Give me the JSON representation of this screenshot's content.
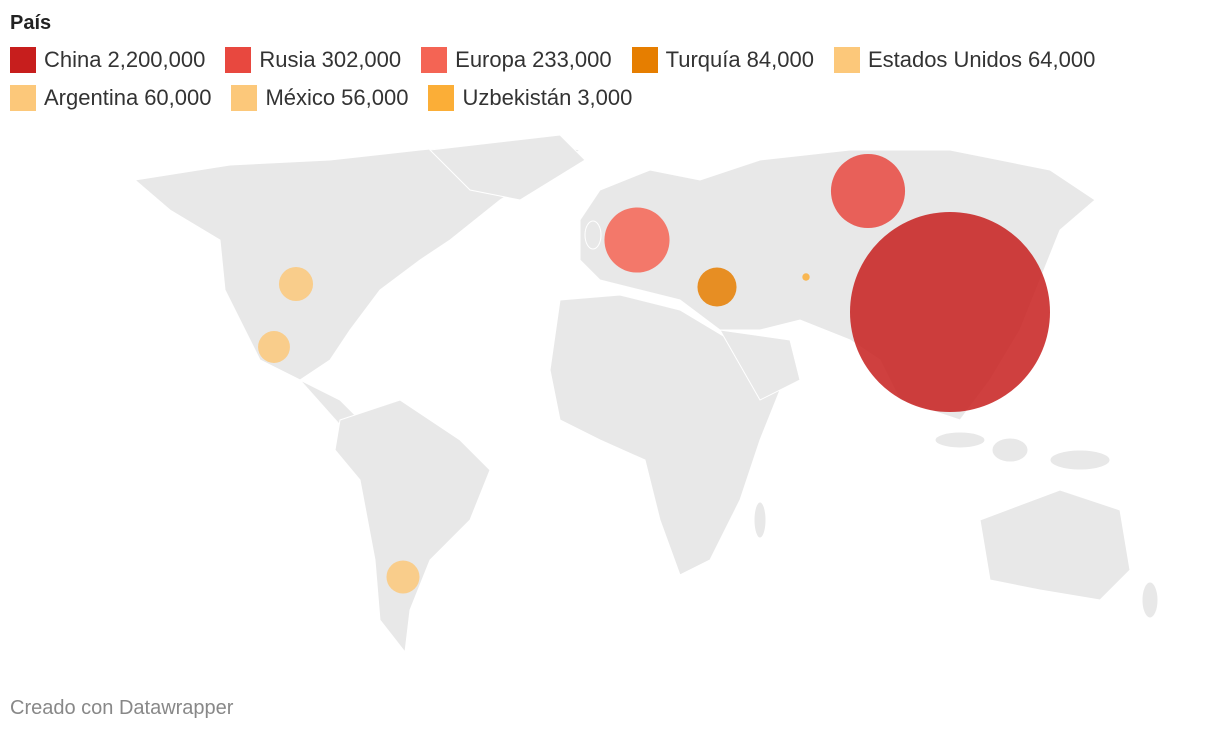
{
  "legend": {
    "title": "País",
    "items": [
      {
        "name": "China",
        "value": 2200000,
        "value_label": "2,200,000",
        "color": "#c71e1d"
      },
      {
        "name": "Rusia",
        "value": 302000,
        "value_label": "302,000",
        "color": "#e8483f"
      },
      {
        "name": "Europa",
        "value": 233000,
        "value_label": "233,000",
        "color": "#f46454"
      },
      {
        "name": "Turquía",
        "value": 84000,
        "value_label": "84,000",
        "color": "#e67e00"
      },
      {
        "name": "Estados Unidos",
        "value": 64000,
        "value_label": "64,000",
        "color": "#fcc87a"
      },
      {
        "name": "Argentina",
        "value": 60000,
        "value_label": "60,000",
        "color": "#fcc87a"
      },
      {
        "name": "México",
        "value": 56000,
        "value_label": "56,000",
        "color": "#fcc87a"
      },
      {
        "name": "Uzbekistán",
        "value": 3000,
        "value_label": "3,000",
        "color": "#fbae37"
      }
    ]
  },
  "footer": {
    "credit": "Creado con Datawrapper"
  }
}
